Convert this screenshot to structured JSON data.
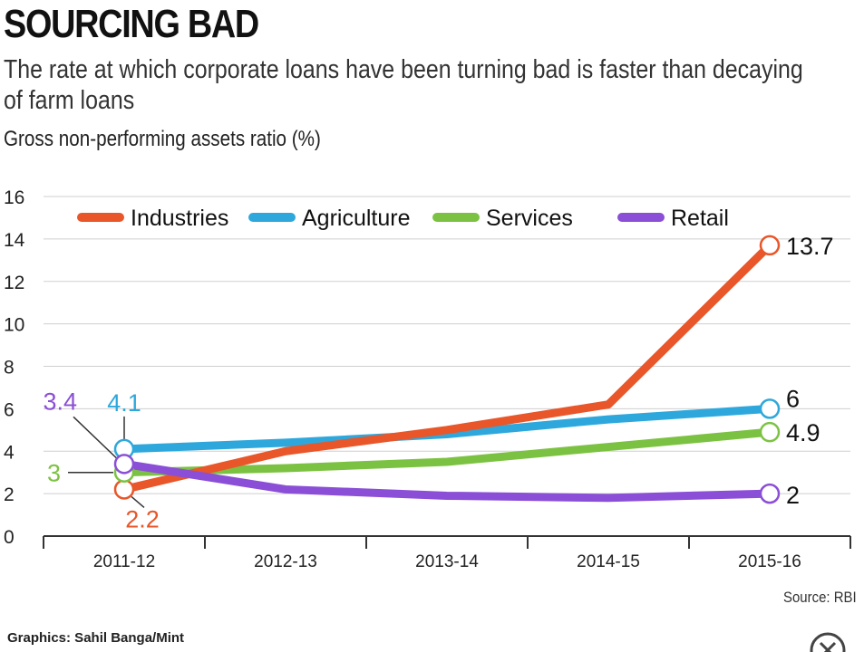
{
  "header": {
    "title": "SOURCING BAD",
    "subtitle": "The rate at which corporate loans have been turning bad is faster than decaying of farm loans"
  },
  "footer": {
    "source": "Source: RBI",
    "credit": "Graphics: Sahil Banga/Mint",
    "close_icon": "close-circle-icon"
  },
  "chart_data": {
    "type": "line",
    "title": "SOURCING BAD",
    "subtitle": "The rate at which corporate loans have been turning bad is faster than decaying of farm loans",
    "ylabel": "Gross non-performing assets ratio (%)",
    "xlabel": "",
    "categories": [
      "2011-12",
      "2012-13",
      "2013-14",
      "2014-15",
      "2015-16"
    ],
    "ylim": [
      0,
      16
    ],
    "yticks": [
      "0",
      "2",
      "4",
      "6",
      "8",
      "10",
      "12",
      "14",
      "16"
    ],
    "grid": true,
    "legend": "top",
    "series": [
      {
        "name": "Industries",
        "color": "#e8562a",
        "values": [
          2.2,
          4.0,
          5.0,
          6.2,
          13.7
        ],
        "start_label": "2.2",
        "end_label": "13.7"
      },
      {
        "name": "Agriculture",
        "color": "#2ea8dc",
        "values": [
          4.1,
          4.4,
          4.8,
          5.5,
          6.0
        ],
        "start_label": "4.1",
        "end_label": "6"
      },
      {
        "name": "Services",
        "color": "#7cc242",
        "values": [
          3.0,
          3.2,
          3.5,
          4.2,
          4.9
        ],
        "start_label": "3",
        "end_label": "4.9"
      },
      {
        "name": "Retail",
        "color": "#8a4fd6",
        "values": [
          3.4,
          2.2,
          1.9,
          1.8,
          2.0
        ],
        "start_label": "3.4",
        "end_label": "2"
      }
    ]
  }
}
